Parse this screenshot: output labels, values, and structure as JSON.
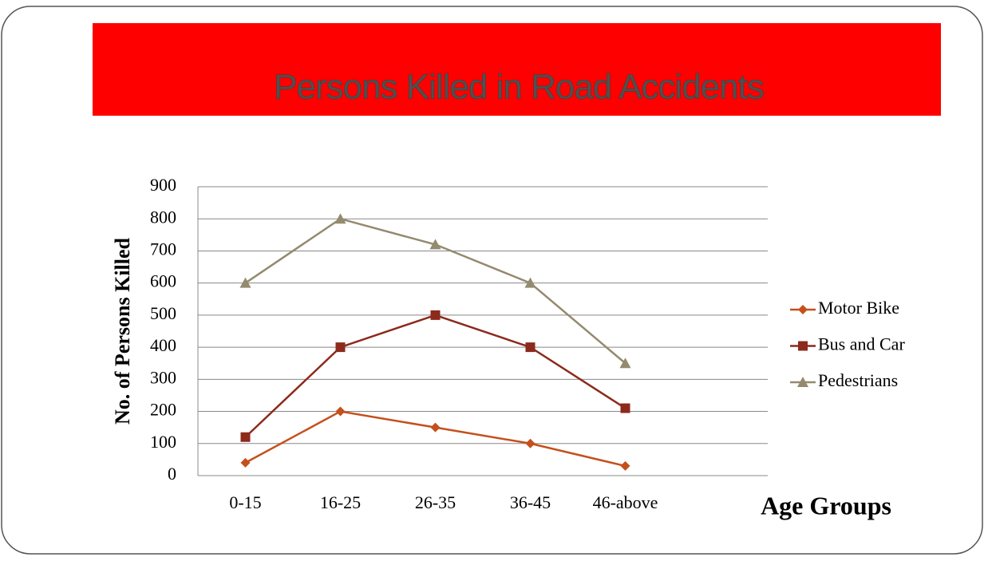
{
  "chart_data": {
    "type": "line",
    "title": "Persons Killed in Road Accidents",
    "y_label": "No. of Persons Killed",
    "x_label": "Age Groups",
    "categories": [
      "0-15",
      "16-25",
      "26-35",
      "36-45",
      "46-above"
    ],
    "series": [
      {
        "name": "Motor Bike",
        "color": "#c4501c",
        "marker": "diamond",
        "values": [
          40,
          200,
          150,
          100,
          30
        ]
      },
      {
        "name": "Bus and Car",
        "color": "#8c2a1c",
        "marker": "square",
        "values": [
          120,
          400,
          500,
          400,
          210
        ]
      },
      {
        "name": "Pedestrians",
        "color": "#948a6e",
        "marker": "triangle",
        "values": [
          600,
          800,
          720,
          600,
          350
        ]
      }
    ],
    "ylim": [
      0,
      900
    ],
    "yticks": [
      0,
      100,
      200,
      300,
      400,
      500,
      600,
      700,
      800,
      900
    ],
    "grid": true,
    "legend": "right"
  }
}
